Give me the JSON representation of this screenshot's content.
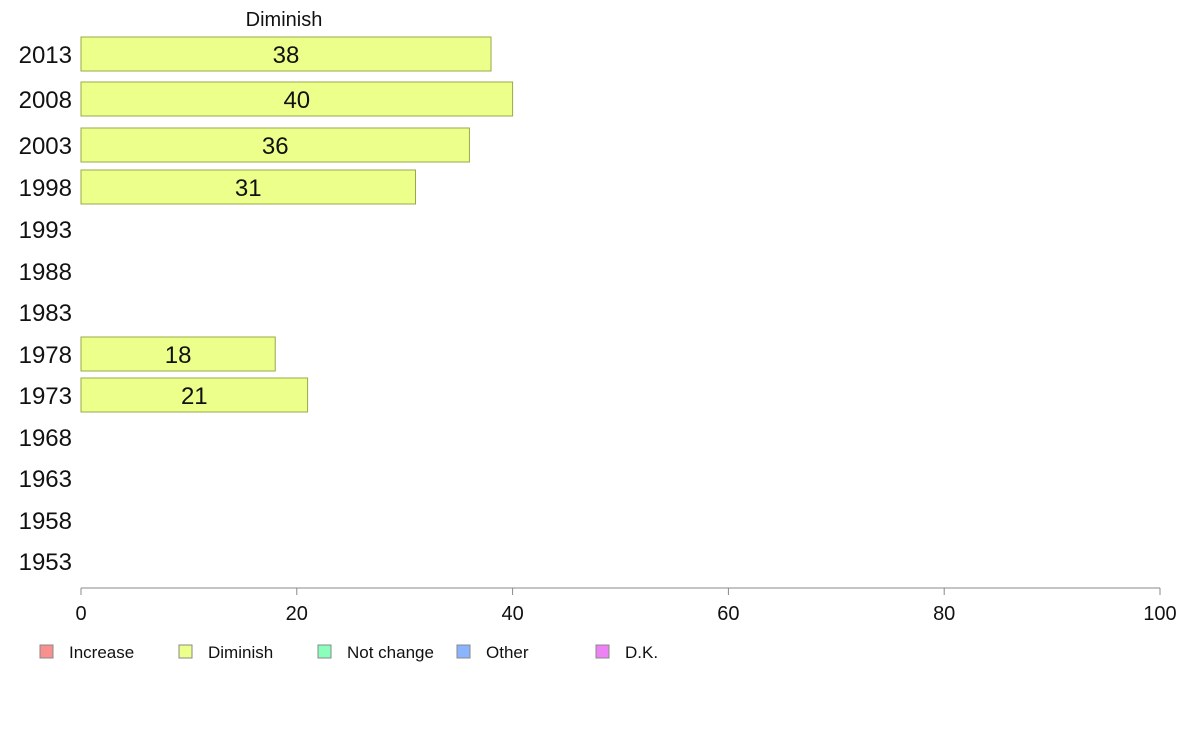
{
  "chart_data": {
    "type": "bar",
    "orientation": "horizontal",
    "series_title": "Diminish",
    "categories": [
      "2013",
      "2008",
      "2003",
      "1998",
      "1993",
      "1988",
      "1983",
      "1978",
      "1973",
      "1968",
      "1963",
      "1958",
      "1953"
    ],
    "series": [
      {
        "name": "Diminish",
        "values": [
          38,
          40,
          36,
          31,
          null,
          null,
          null,
          18,
          21,
          null,
          null,
          null,
          null
        ]
      }
    ],
    "data_labels": [
      "38",
      "40",
      "36",
      "31",
      "",
      "",
      "",
      "18",
      "21",
      "",
      "",
      "",
      ""
    ],
    "xlim": [
      0,
      100
    ],
    "xticks": [
      "0",
      "20",
      "40",
      "60",
      "80",
      "100"
    ],
    "grid": false,
    "legend_position": "bottom-left",
    "legend": [
      {
        "label": "Increase",
        "color": "#f89090"
      },
      {
        "label": "Diminish",
        "color": "#ecff8a"
      },
      {
        "label": "Not change",
        "color": "#8affbc"
      },
      {
        "label": "Other",
        "color": "#8ab4ff"
      },
      {
        "label": "D.K.",
        "color": "#ee82f4"
      }
    ],
    "bar_color": "#ecff8a"
  }
}
